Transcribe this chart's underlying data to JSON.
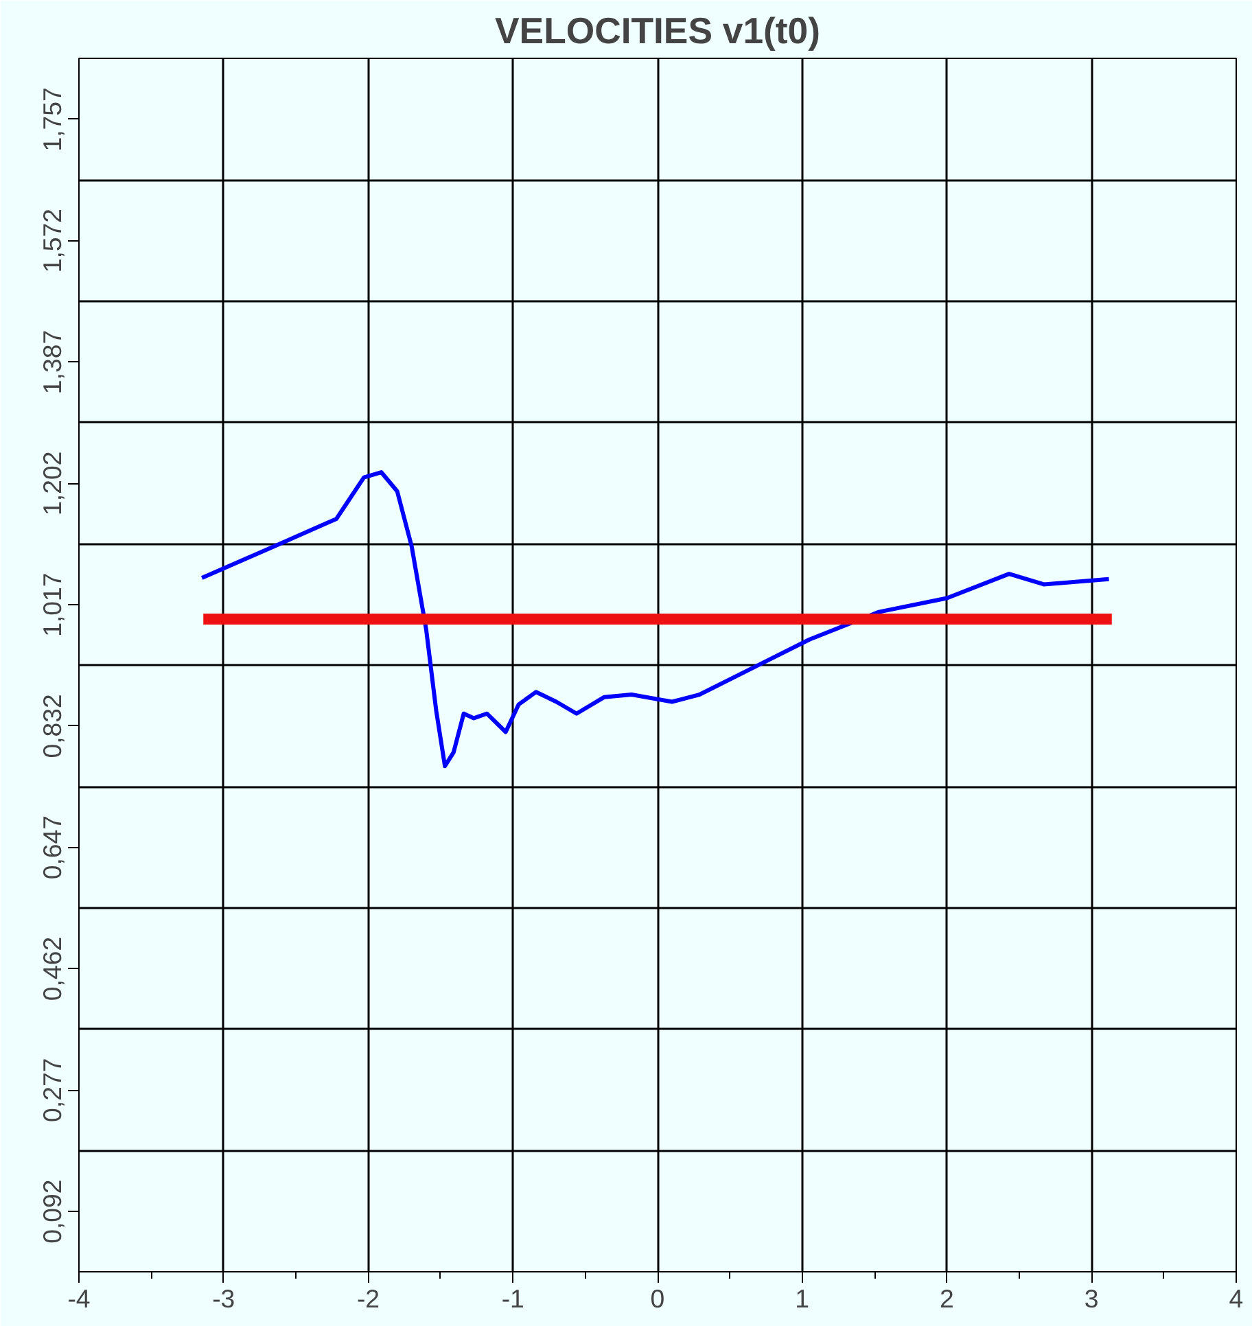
{
  "chart_data": {
    "type": "line",
    "title": "VELOCITIES v1(t0)",
    "xlim": [
      -4,
      4
    ],
    "xticks": [
      -4,
      -3,
      -2,
      -1,
      0,
      1,
      2,
      3,
      4
    ],
    "ylim": [
      0,
      1.85
    ],
    "yticks": [
      {
        "value": 0.092,
        "label": "0,092"
      },
      {
        "value": 0.277,
        "label": "0,277"
      },
      {
        "value": 0.462,
        "label": "0,462"
      },
      {
        "value": 0.647,
        "label": "0,647"
      },
      {
        "value": 0.832,
        "label": "0,832"
      },
      {
        "value": 1.017,
        "label": "1,017"
      },
      {
        "value": 1.202,
        "label": "1,202"
      },
      {
        "value": 1.387,
        "label": "1,387"
      },
      {
        "value": 1.572,
        "label": "1,572"
      },
      {
        "value": 1.757,
        "label": "1,757"
      }
    ],
    "grid": true,
    "line_style": "solid",
    "marker": "none",
    "series": [
      {
        "color": "#0000ff",
        "x": [
          -3.15,
          -2.65,
          -2.22,
          -2.03,
          -1.91,
          -1.8,
          -1.7,
          -1.6,
          -1.53,
          -1.47,
          -1.41,
          -1.34,
          -1.27,
          -1.18,
          -1.05,
          -0.96,
          -0.84,
          -0.7,
          -0.56,
          -0.37,
          -0.18,
          0.1,
          0.29,
          0.67,
          1.05,
          1.53,
          2.0,
          2.43,
          2.67,
          3.12
        ],
        "values": [
          1.058,
          1.106,
          1.148,
          1.211,
          1.219,
          1.19,
          1.106,
          0.98,
          0.855,
          0.771,
          0.792,
          0.851,
          0.844,
          0.851,
          0.823,
          0.865,
          0.884,
          0.869,
          0.851,
          0.876,
          0.88,
          0.869,
          0.88,
          0.922,
          0.964,
          1.006,
          1.027,
          1.064,
          1.048,
          1.056
        ]
      },
      {
        "color": "#ee1111",
        "x": [
          -3.14,
          3.14
        ],
        "values": [
          0.995,
          0.995
        ]
      }
    ]
  }
}
